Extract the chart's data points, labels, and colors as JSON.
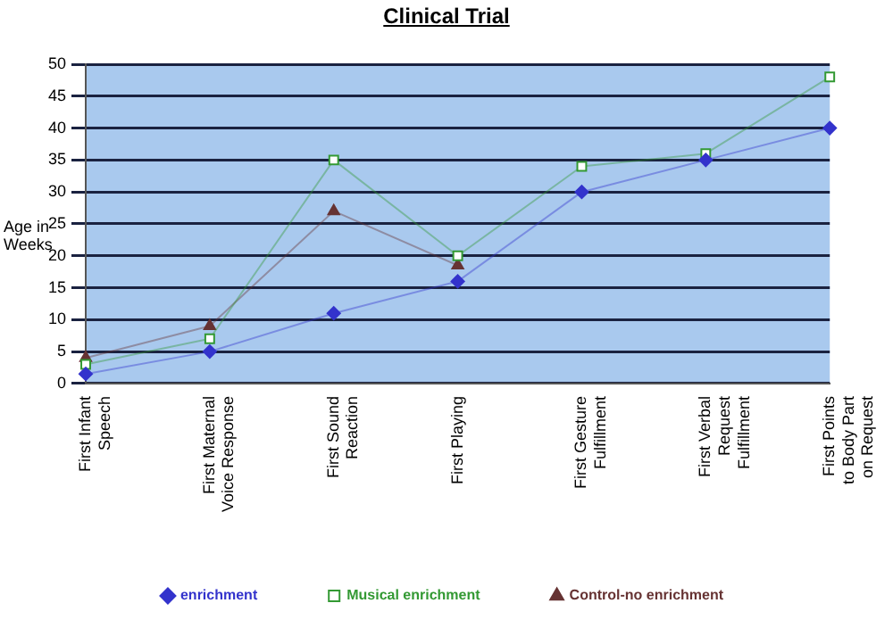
{
  "chart_data": {
    "type": "line",
    "title": "Clinical Trial",
    "ylabel": "Age in Weeks",
    "categories": [
      "First Infant Speech",
      "First Maternal Voice Response",
      "First Sound Reaction",
      "First Playing",
      "First Gesture Fulfillment",
      "First Verbal Request Fulfillment",
      "First Points to Body Part on Request"
    ],
    "series": [
      {
        "name": "enrichment",
        "color": "#3333cc",
        "marker": "diamond",
        "values": [
          1.5,
          5,
          11,
          16,
          30,
          35,
          40
        ]
      },
      {
        "name": "Musical enrichment",
        "color": "#339933",
        "marker": "square",
        "values": [
          3,
          7,
          35,
          20,
          34,
          36,
          48
        ]
      },
      {
        "name": "Control-no enrichment",
        "color": "#663333",
        "marker": "triangle",
        "values": [
          4,
          9,
          27,
          18.5,
          null,
          null,
          null
        ]
      }
    ],
    "ylim": [
      0,
      50
    ],
    "yticks": [
      0,
      5,
      10,
      15,
      20,
      25,
      30,
      35,
      40,
      45,
      50
    ],
    "grid": "y",
    "legend": "bottom"
  }
}
